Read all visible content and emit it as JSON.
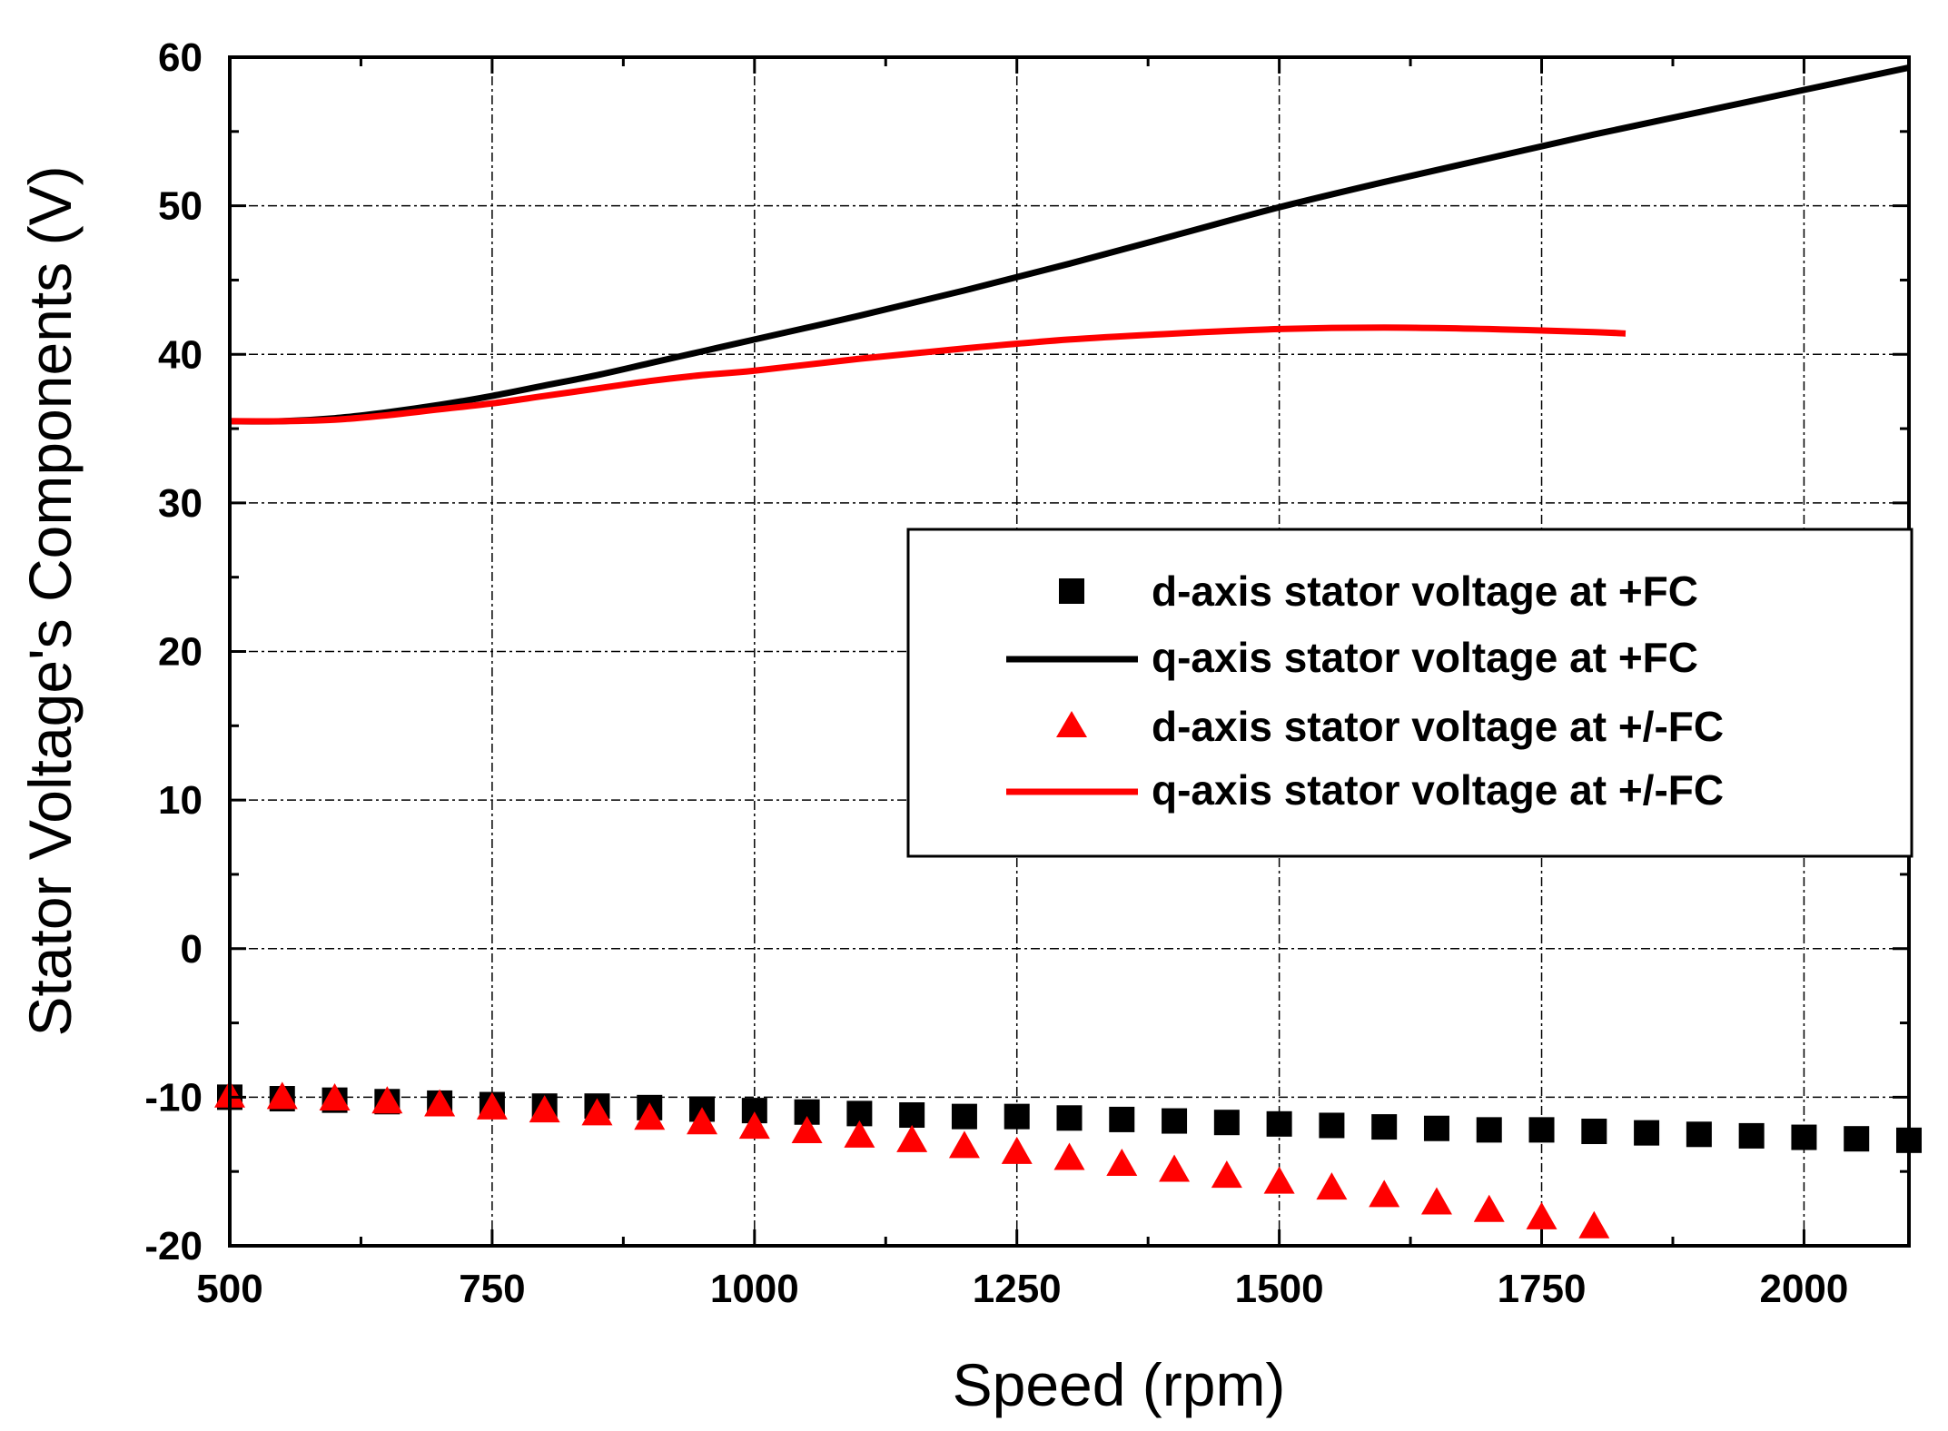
{
  "chart_data": {
    "type": "line",
    "title": "",
    "xlabel": "Speed (rpm)",
    "ylabel": "Stator Voltage's Components (V)",
    "xlim": [
      500,
      2100
    ],
    "ylim": [
      -20,
      60
    ],
    "grid": true,
    "x_ticks": [
      500,
      750,
      1000,
      1250,
      1500,
      1750,
      2000
    ],
    "y_ticks": [
      -20,
      -10,
      0,
      10,
      20,
      30,
      40,
      50,
      60
    ],
    "x_tick_labels": [
      "500",
      "750",
      "1000",
      "1250",
      "1500",
      "1750",
      "2000"
    ],
    "y_tick_labels": [
      "-20",
      "-10",
      "0",
      "10",
      "20",
      "30",
      "40",
      "50",
      "60"
    ],
    "legend_position": "center-right",
    "colors": {
      "black": "#000000",
      "red": "#ff0000"
    },
    "series": [
      {
        "name": "d-axis stator voltage at +FC",
        "style": "square-markers",
        "color": "#000000",
        "x": [
          500,
          550,
          600,
          650,
          700,
          750,
          800,
          850,
          900,
          950,
          1000,
          1050,
          1100,
          1150,
          1200,
          1250,
          1300,
          1350,
          1400,
          1450,
          1500,
          1550,
          1600,
          1650,
          1700,
          1750,
          1800,
          1850,
          1900,
          1950,
          2000,
          2050,
          2100
        ],
        "y": [
          -10.0,
          -10.1,
          -10.2,
          -10.3,
          -10.4,
          -10.5,
          -10.6,
          -10.6,
          -10.7,
          -10.8,
          -10.9,
          -11.0,
          -11.1,
          -11.2,
          -11.3,
          -11.3,
          -11.4,
          -11.5,
          -11.6,
          -11.7,
          -11.8,
          -11.9,
          -12.0,
          -12.1,
          -12.2,
          -12.2,
          -12.3,
          -12.4,
          -12.5,
          -12.6,
          -12.7,
          -12.8,
          -12.9
        ]
      },
      {
        "name": "q-axis stator voltage at +FC",
        "style": "line",
        "color": "#000000",
        "x": [
          500,
          550,
          600,
          650,
          700,
          750,
          800,
          850,
          900,
          950,
          1000,
          1100,
          1200,
          1300,
          1400,
          1500,
          1600,
          1700,
          1800,
          1900,
          2000,
          2100
        ],
        "y": [
          35.5,
          35.5,
          35.7,
          36.1,
          36.6,
          37.2,
          37.9,
          38.6,
          39.4,
          40.2,
          41.0,
          42.6,
          44.3,
          46.1,
          48.0,
          49.9,
          51.6,
          53.2,
          54.8,
          56.3,
          57.8,
          59.3
        ]
      },
      {
        "name": "d-axis stator voltage at +/-FC",
        "style": "triangle-markers",
        "color": "#ff0000",
        "x": [
          500,
          550,
          600,
          650,
          700,
          750,
          800,
          850,
          900,
          950,
          1000,
          1050,
          1100,
          1150,
          1200,
          1250,
          1300,
          1350,
          1400,
          1450,
          1500,
          1550,
          1600,
          1650,
          1700,
          1750,
          1800
        ],
        "y": [
          -9.9,
          -10.0,
          -10.1,
          -10.3,
          -10.5,
          -10.7,
          -10.9,
          -11.1,
          -11.4,
          -11.7,
          -12.0,
          -12.3,
          -12.6,
          -12.9,
          -13.3,
          -13.7,
          -14.1,
          -14.5,
          -14.9,
          -15.3,
          -15.7,
          -16.1,
          -16.6,
          -17.1,
          -17.6,
          -18.1,
          -18.7
        ]
      },
      {
        "name": "q-axis stator voltage at +/-FC",
        "style": "line",
        "color": "#ff0000",
        "x": [
          500,
          550,
          600,
          650,
          700,
          750,
          800,
          850,
          900,
          950,
          1000,
          1100,
          1200,
          1300,
          1400,
          1500,
          1600,
          1700,
          1800,
          1830
        ],
        "y": [
          35.5,
          35.5,
          35.6,
          35.9,
          36.3,
          36.7,
          37.2,
          37.7,
          38.2,
          38.6,
          38.9,
          39.7,
          40.4,
          41.0,
          41.4,
          41.7,
          41.8,
          41.7,
          41.5,
          41.4
        ]
      }
    ]
  }
}
